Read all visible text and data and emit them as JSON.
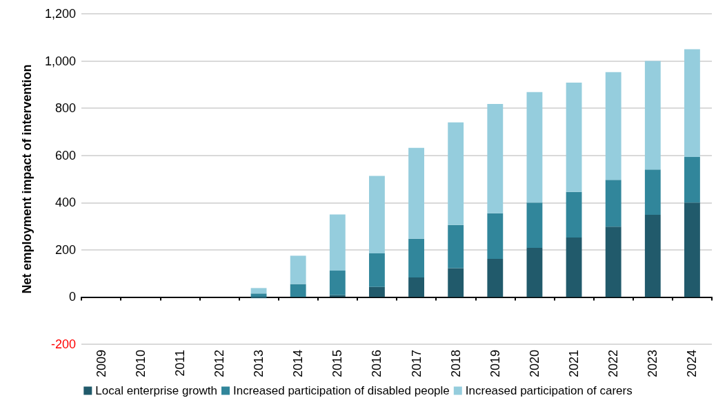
{
  "chart_data": {
    "type": "bar",
    "stacked": true,
    "ylabel": "Net employment impact of intervention",
    "categories": [
      "2009",
      "2010",
      "2011",
      "2012",
      "2013",
      "2014",
      "2015",
      "2016",
      "2017",
      "2018",
      "2019",
      "2020",
      "2021",
      "2022",
      "2023",
      "2024"
    ],
    "series": [
      {
        "name": "Local enterprise growth",
        "color": "#215a6b",
        "values": [
          0,
          0,
          0,
          0,
          -5,
          0,
          8,
          43,
          83,
          122,
          162,
          208,
          252,
          298,
          348,
          400
        ]
      },
      {
        "name": "Increased participation of disabled people",
        "color": "#31869b",
        "values": [
          0,
          0,
          0,
          0,
          15,
          55,
          104,
          142,
          164,
          183,
          193,
          192,
          193,
          198,
          192,
          193
        ]
      },
      {
        "name": "Increased participation of carers",
        "color": "#95cddd",
        "values": [
          0,
          0,
          0,
          0,
          23,
          120,
          238,
          328,
          385,
          435,
          463,
          468,
          463,
          457,
          460,
          457
        ]
      }
    ],
    "ylim": [
      -200,
      1200
    ],
    "yticks": [
      {
        "value": -200,
        "label": "-200"
      },
      {
        "value": 0,
        "label": "0"
      },
      {
        "value": 200,
        "label": "200"
      },
      {
        "value": 400,
        "label": "400"
      },
      {
        "value": 600,
        "label": "600"
      },
      {
        "value": 800,
        "label": "800"
      },
      {
        "value": 1000,
        "label": "1,000"
      },
      {
        "value": 1200,
        "label": "1,200"
      }
    ],
    "grid": "y",
    "legend": "bottom"
  }
}
